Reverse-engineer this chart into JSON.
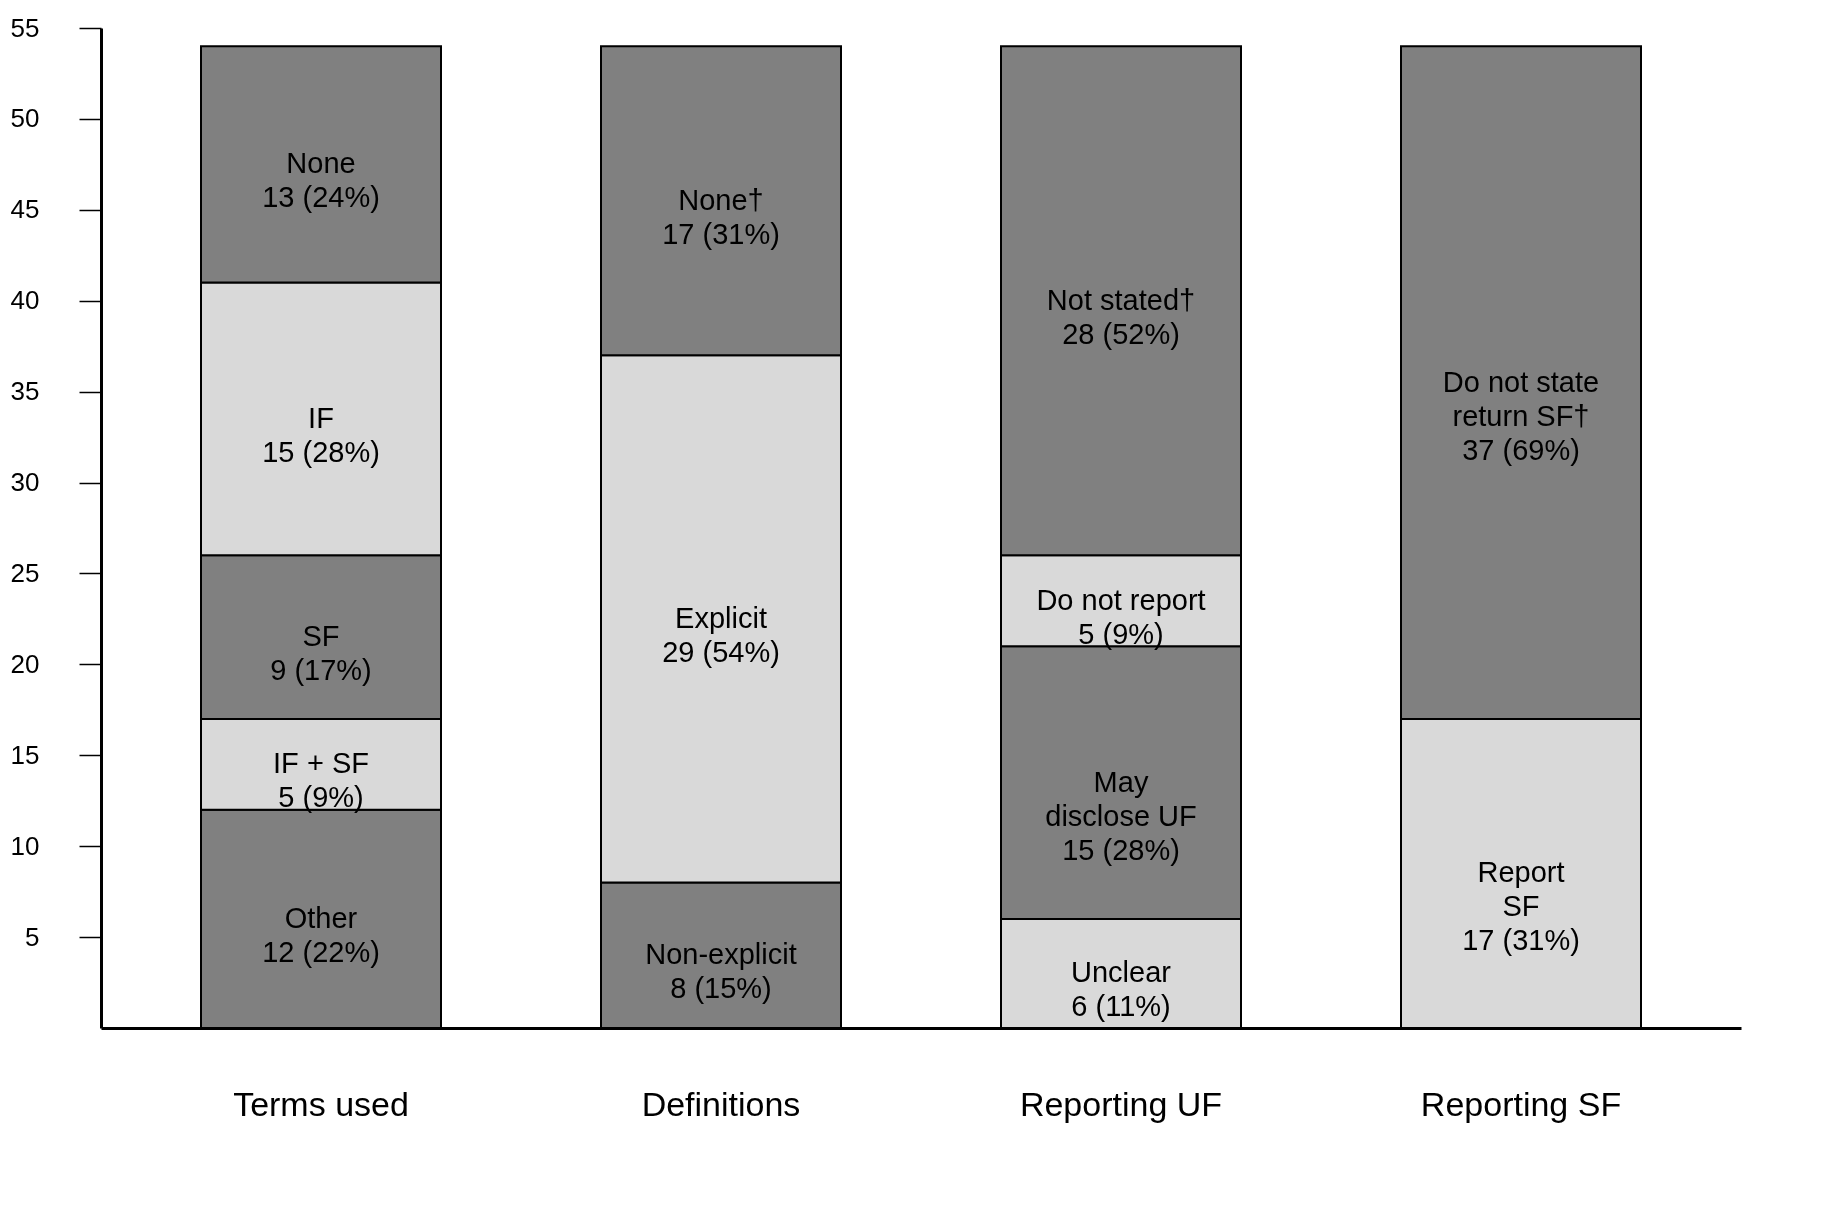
{
  "chart_data": {
    "type": "bar",
    "stacked": true,
    "categories": [
      "Terms used",
      "Definitions",
      "Reporting UF",
      "Reporting SF"
    ],
    "series": [
      {
        "colors": [
          "#808080",
          "#808080",
          "#d9d9d9",
          "#d9d9d9"
        ],
        "values": [
          12,
          8,
          6,
          17
        ],
        "value_labels": [
          "Other\n12 (22%)",
          "Non-explicit\n8 (15%)",
          "Unclear\n6 (11%)",
          "Report\nSF\n17 (31%)"
        ]
      },
      {
        "colors": [
          "#d9d9d9",
          "#d9d9d9",
          "#808080",
          "#808080"
        ],
        "values": [
          5,
          29,
          15,
          37
        ],
        "value_labels": [
          "IF + SF\n5 (9%)",
          "Explicit\n29 (54%)",
          "May\ndisclose UF\n15 (28%)",
          "Do not state\nreturn SF†\n37 (69%)"
        ]
      },
      {
        "colors": [
          "#808080",
          "#808080",
          "#d9d9d9",
          null
        ],
        "values": [
          9,
          17,
          5,
          null
        ],
        "value_labels": [
          "SF\n9 (17%)",
          "None†\n17 (31%)",
          "Do not report\n5 (9%)",
          null
        ]
      },
      {
        "colors": [
          "#d9d9d9",
          null,
          "#808080",
          null
        ],
        "values": [
          15,
          null,
          28,
          null
        ],
        "value_labels": [
          "IF\n15 (28%)",
          null,
          "Not stated†\n28 (52%)",
          null
        ]
      },
      {
        "colors": [
          "#808080",
          null,
          null,
          null
        ],
        "values": [
          13,
          null,
          null,
          null
        ],
        "value_labels": [
          "None\n13 (24%)",
          null,
          null,
          null
        ]
      }
    ],
    "ylim": [
      0,
      55
    ],
    "yticks": [
      5,
      10,
      15,
      20,
      25,
      30,
      35,
      40,
      45,
      50,
      55
    ],
    "grid": false
  }
}
